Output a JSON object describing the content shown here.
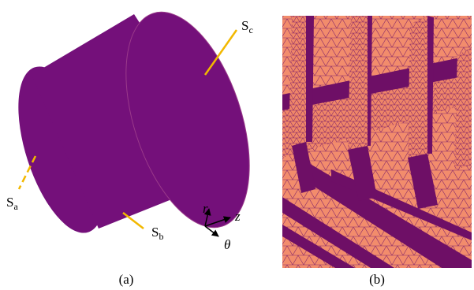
{
  "panel_a": {
    "caption": "(a)",
    "surfaces": [
      {
        "main": "S",
        "sub": "c"
      },
      {
        "main": "S",
        "sub": "a"
      },
      {
        "main": "S",
        "sub": "b"
      }
    ],
    "axes": {
      "r": "r",
      "z": "z",
      "theta": "θ"
    }
  },
  "panel_b": {
    "caption": "(b)"
  }
}
